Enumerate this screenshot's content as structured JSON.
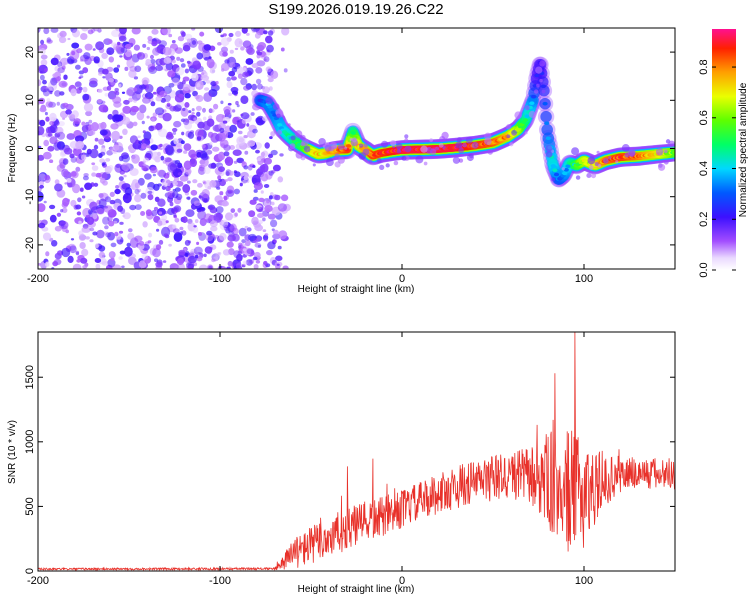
{
  "title": "S199.2026.019.19.26.C22",
  "chart_data": [
    {
      "type": "heatmap",
      "title": "S199.2026.019.19.26.C22",
      "xlabel": "Height of straight line (km)",
      "ylabel": "Frequency (Hz)",
      "xlim": [
        -200,
        150
      ],
      "ylim": [
        -25,
        25
      ],
      "xticks": [
        -200,
        -100,
        0,
        100
      ],
      "yticks": [
        -20,
        -10,
        0,
        10,
        20
      ],
      "xtick_labels": [
        "-200",
        "-100",
        "0",
        "100"
      ],
      "ytick_labels": [
        "-20",
        "-10",
        "0",
        "10",
        "20"
      ],
      "colorbar": {
        "label": "Normalized spectral amplitude",
        "range": [
          0,
          0.95
        ],
        "ticks": [
          0.0,
          0.2,
          0.4,
          0.6,
          0.8
        ],
        "tick_labels": [
          "0.0",
          "0.2",
          "0.4",
          "0.6",
          "0.8"
        ]
      },
      "noise_region_x": [
        -200,
        -70
      ],
      "ridge": {
        "x": [
          -78,
          -74,
          -70,
          -66,
          -62,
          -58,
          -54,
          -50,
          -46,
          -42,
          -38,
          -34,
          -30,
          -27,
          -24,
          -20,
          -16,
          -12,
          -6,
          0,
          10,
          20,
          30,
          40,
          50,
          58,
          64,
          68,
          72,
          74,
          76,
          78,
          80,
          83,
          86,
          89,
          92,
          96,
          100,
          106,
          112,
          120,
          130,
          140,
          150
        ],
        "y": [
          10,
          9.5,
          7,
          4,
          2.5,
          1.2,
          0.3,
          -0.5,
          -1.2,
          -1.0,
          -0.5,
          -0.3,
          -0.2,
          3.5,
          0.6,
          -0.4,
          -1.5,
          -1.0,
          -0.6,
          -0.3,
          -0.2,
          -0.1,
          0.2,
          0.6,
          1.2,
          2.5,
          4,
          6,
          10,
          15,
          18,
          12,
          3,
          -3.5,
          -6.5,
          -5.5,
          -3,
          -3.5,
          -2.5,
          -3.5,
          -2.5,
          -1.8,
          -1.6,
          -1.2,
          -0.8
        ],
        "amp": [
          0.3,
          0.35,
          0.35,
          0.4,
          0.45,
          0.5,
          0.55,
          0.7,
          0.75,
          0.75,
          0.8,
          0.85,
          0.9,
          0.5,
          0.75,
          0.8,
          0.9,
          0.9,
          0.92,
          0.95,
          0.95,
          0.95,
          0.95,
          0.9,
          0.88,
          0.8,
          0.65,
          0.5,
          0.35,
          0.2,
          0.2,
          0.25,
          0.3,
          0.45,
          0.3,
          0.35,
          0.45,
          0.55,
          0.7,
          0.75,
          0.85,
          0.9,
          0.85,
          0.75,
          0.6
        ]
      }
    },
    {
      "type": "line",
      "xlabel": "Height of straight line (km)",
      "ylabel": "SNR (10 * v/v)",
      "xlim": [
        -200,
        150
      ],
      "ylim": [
        0,
        1850
      ],
      "xticks": [
        -200,
        -100,
        0,
        100
      ],
      "yticks": [
        0,
        500,
        1000,
        1500
      ],
      "xtick_labels": [
        "-200",
        "-100",
        "0",
        "100"
      ],
      "ytick_labels": [
        "0",
        "500",
        "1000",
        "1500"
      ],
      "color": "#e8312a",
      "envelope": {
        "x": [
          -200,
          -70,
          -60,
          -50,
          -40,
          -30,
          -20,
          -10,
          0,
          10,
          20,
          30,
          40,
          50,
          60,
          70,
          80,
          90,
          100,
          110,
          120,
          130,
          140,
          150
        ],
        "mean": [
          15,
          18,
          130,
          200,
          260,
          320,
          380,
          420,
          480,
          540,
          600,
          650,
          690,
          720,
          740,
          740,
          700,
          620,
          600,
          680,
          750,
          760,
          750,
          760
        ],
        "spread": [
          8,
          8,
          120,
          150,
          170,
          170,
          160,
          160,
          150,
          150,
          160,
          170,
          170,
          180,
          190,
          220,
          380,
          500,
          420,
          200,
          150,
          130,
          130,
          130
        ]
      },
      "peaks": [
        {
          "x": -30,
          "y": 810
        },
        {
          "x": -16,
          "y": 870
        },
        {
          "x": 84,
          "y": 1530
        },
        {
          "x": 95,
          "y": 1850
        }
      ]
    }
  ]
}
